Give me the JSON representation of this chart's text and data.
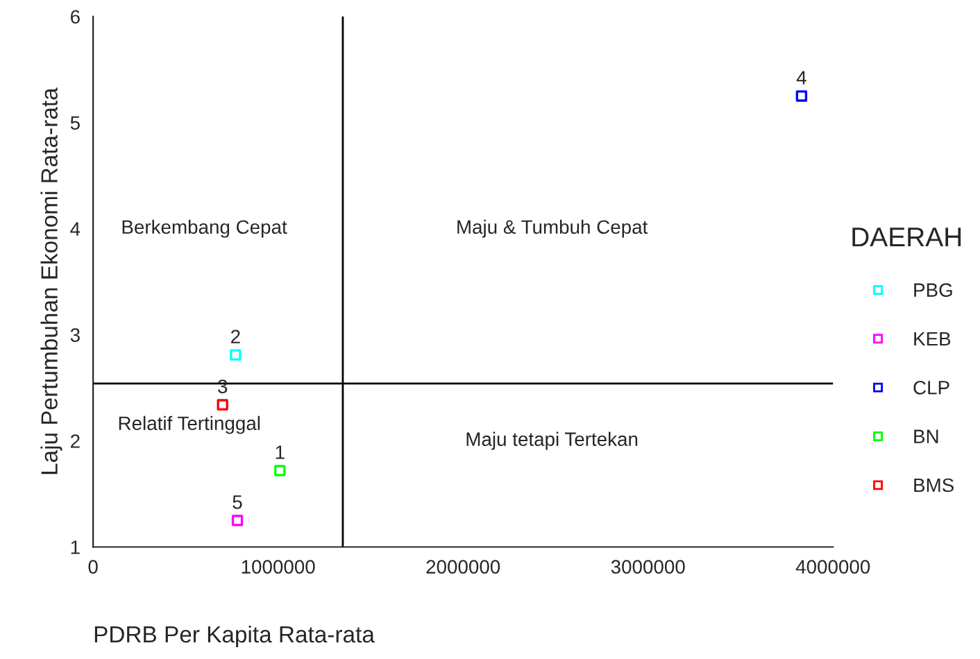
{
  "chart_data": {
    "type": "scatter",
    "xlabel": "PDRB Per Kapita Rata-rata",
    "ylabel": "Laju Pertumbuhan Ekonomi Rata-rata",
    "legend_title": "DAERAH",
    "legend": "right",
    "marker": "square",
    "grid": false,
    "xlim": [
      0,
      4000000
    ],
    "xticks": [
      0,
      1000000,
      2000000,
      3000000,
      4000000
    ],
    "ylim": [
      1,
      6
    ],
    "yticks": [
      1,
      2,
      3,
      4,
      5,
      6
    ],
    "series": [
      {
        "name": "PBG",
        "color": "#00ffff",
        "x": [
          770000
        ],
        "values": [
          2.81
        ]
      },
      {
        "name": "KEB",
        "color": "#ff00ff",
        "x": [
          780000
        ],
        "values": [
          1.25
        ]
      },
      {
        "name": "CLP",
        "color": "#0000ff",
        "x": [
          3830000
        ],
        "values": [
          5.25
        ]
      },
      {
        "name": "BN",
        "color": "#00ff00",
        "x": [
          1010000
        ],
        "values": [
          1.72
        ]
      },
      {
        "name": "BMS",
        "color": "#ff0000",
        "x": [
          700000
        ],
        "values": [
          2.34
        ]
      }
    ],
    "ref_lines": [
      {
        "axis": "x",
        "value": 1350000,
        "color": "#000000"
      },
      {
        "axis": "y",
        "value": 2.54,
        "color": "#000000"
      }
    ],
    "annotations": [
      {
        "text": "1",
        "x": 1010000,
        "y": 1.72
      },
      {
        "text": "2",
        "x": 770000,
        "y": 2.81
      },
      {
        "text": "3",
        "x": 700000,
        "y": 2.34
      },
      {
        "text": "4",
        "x": 3830000,
        "y": 5.25
      },
      {
        "text": "5",
        "x": 780000,
        "y": 1.25
      },
      "Berkembang Cepat",
      "Maju & Tumbuh Cepat",
      "Relatif Tertinggal",
      "Maju tetapi Tertekan"
    ]
  }
}
